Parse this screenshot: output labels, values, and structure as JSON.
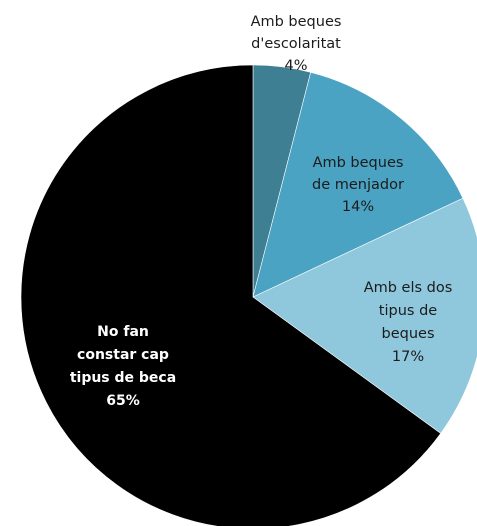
{
  "chart_data": {
    "type": "pie",
    "slices": [
      {
        "label_lines": [
          "Amb beques",
          "d'escolaritat"
        ],
        "value": 4,
        "value_label": "4%",
        "color": "#3f7f94"
      },
      {
        "label_lines": [
          "Amb beques",
          "de menjador"
        ],
        "value": 14,
        "value_label": "14%",
        "color": "#4aa3c2"
      },
      {
        "label_lines": [
          "Amb els dos",
          "tipus de",
          "beques"
        ],
        "value": 17,
        "value_label": "17%",
        "color": "#8fc7dc"
      },
      {
        "label_lines": [
          "No fan",
          "constar cap",
          "tipus de beca"
        ],
        "value": 65,
        "value_label": "65%",
        "color": "#000000"
      }
    ],
    "start_angle_deg": 0,
    "direction": "clockwise",
    "legend": "none"
  }
}
